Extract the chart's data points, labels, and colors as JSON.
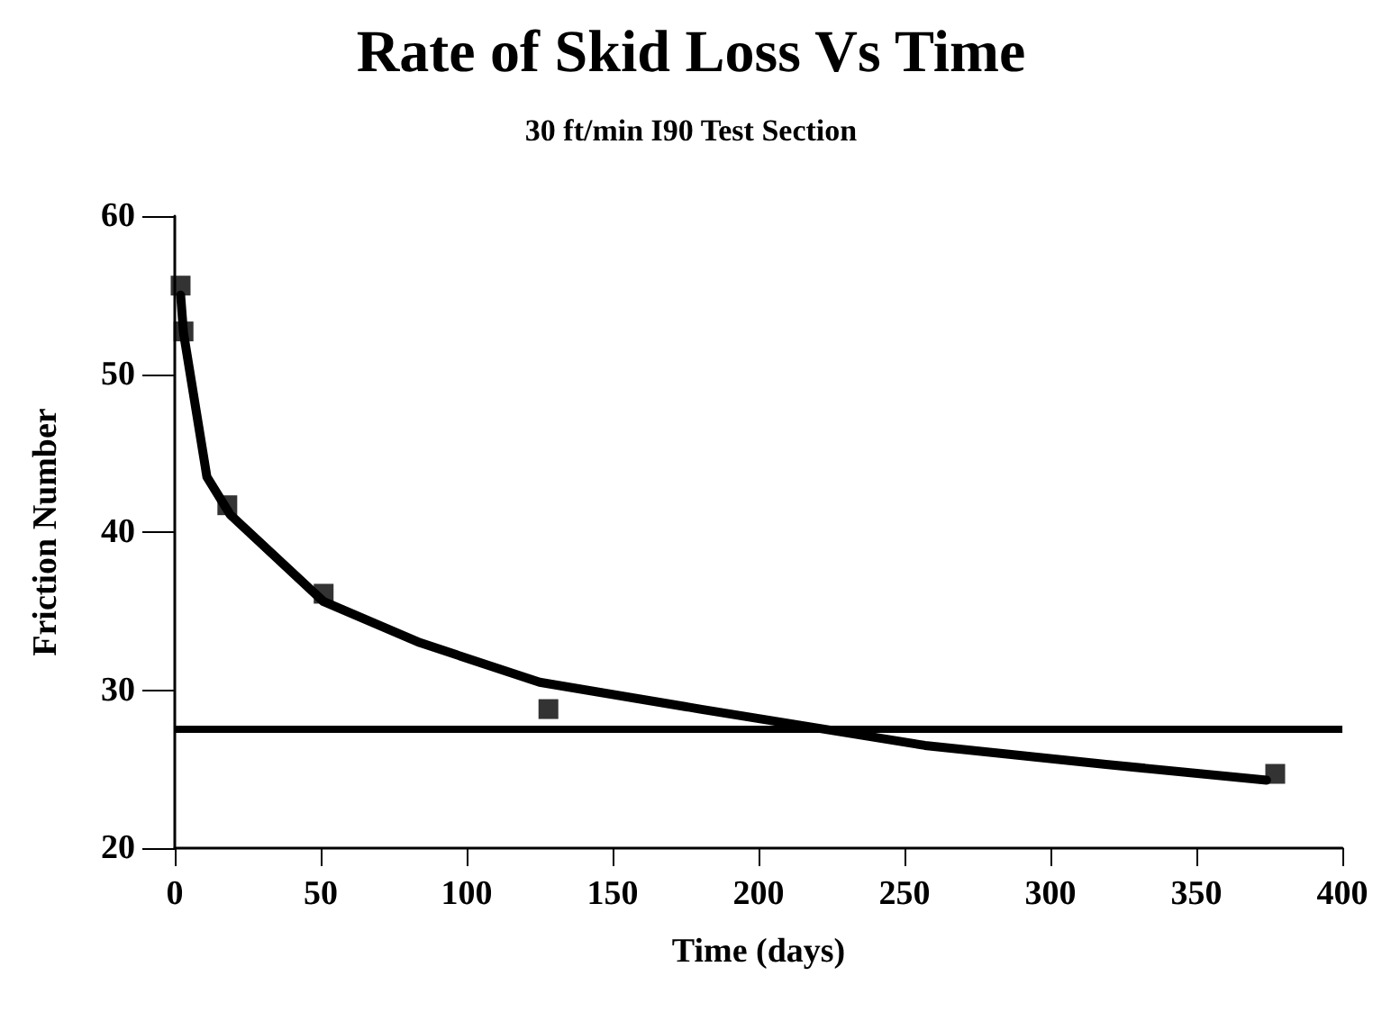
{
  "chart_data": {
    "type": "scatter",
    "title": "Rate of Skid Loss Vs Time",
    "subtitle": "30 ft/min I90 Test Section",
    "xlabel": "Time (days)",
    "ylabel": "Friction Number",
    "xlim": [
      0,
      400
    ],
    "xticks": [
      0,
      50,
      100,
      150,
      200,
      250,
      300,
      350,
      400
    ],
    "ylim": [
      20,
      60
    ],
    "yticks": [
      20,
      30,
      40,
      50,
      60
    ],
    "grid": false,
    "series": [
      {
        "color": "#000000",
        "marker": "square",
        "x": [
          2,
          3,
          18,
          51,
          128,
          377
        ],
        "values": [
          55.6,
          52.7,
          41.7,
          36.1,
          28.8,
          24.7
        ]
      },
      {
        "type": "line",
        "color": "#000000",
        "marker": "none",
        "line_style": "solid",
        "x": [
          2,
          3,
          11,
          19,
          51,
          84,
          125,
          180,
          257,
          319,
          374
        ],
        "values": [
          55,
          52.6,
          43.5,
          41.1,
          35.6,
          33.0,
          30.5,
          28.8,
          26.5,
          25.3,
          24.3
        ]
      }
    ],
    "ref_lines": [
      {
        "axis": "y",
        "value": 27.5,
        "color": "#000000",
        "line_style": "solid"
      }
    ]
  }
}
